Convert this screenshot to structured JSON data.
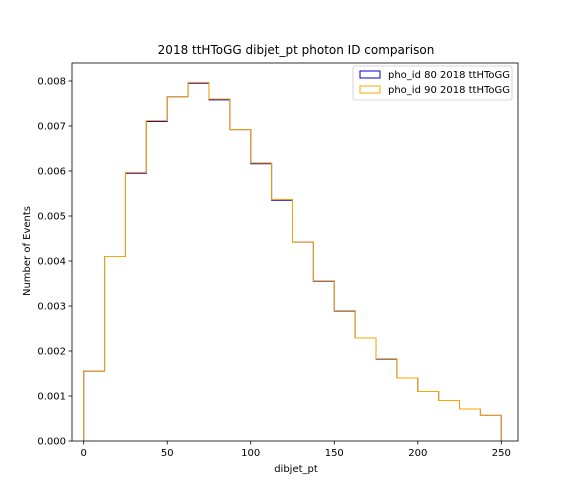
{
  "chart_data": {
    "type": "histogram-step",
    "title": "2018 ttHToGG dibjet_pt photon ID comparison",
    "xlabel": "dibjet_pt",
    "ylabel": "Number of Events",
    "xlim": [
      -7,
      260
    ],
    "ylim": [
      0,
      0.0084
    ],
    "x_ticks": [
      0,
      50,
      100,
      150,
      200,
      250
    ],
    "x_tick_labels": [
      "0",
      "50",
      "100",
      "150",
      "200",
      "250"
    ],
    "y_ticks": [
      0,
      0.001,
      0.002,
      0.003,
      0.004,
      0.005,
      0.006,
      0.007,
      0.008
    ],
    "y_tick_labels": [
      "0.000",
      "0.001",
      "0.002",
      "0.003",
      "0.004",
      "0.005",
      "0.006",
      "0.007",
      "0.008"
    ],
    "bin_edges": [
      0,
      12.5,
      25,
      37.5,
      50,
      62.5,
      75,
      87.5,
      100,
      112.5,
      125,
      137.5,
      150,
      162.5,
      175,
      187.5,
      200,
      212.5,
      225,
      237.5,
      250
    ],
    "legend_position": "upper right",
    "series": [
      {
        "name": "pho_id 80 2018 ttHToGG",
        "color": "#0000cc",
        "values": [
          0.00155,
          0.0041,
          0.00595,
          0.0071,
          0.00765,
          0.00795,
          0.00758,
          0.00692,
          0.00616,
          0.00535,
          0.00442,
          0.00355,
          0.00289,
          0.00229,
          0.00182,
          0.0014,
          0.0011,
          0.0009,
          0.00071,
          0.00057
        ]
      },
      {
        "name": "pho_id 90 2018 ttHToGG",
        "color": "#ffa500",
        "values": [
          0.00155,
          0.0041,
          0.00597,
          0.00712,
          0.00765,
          0.00797,
          0.0076,
          0.00692,
          0.00618,
          0.00537,
          0.00442,
          0.00356,
          0.0029,
          0.00229,
          0.00183,
          0.0014,
          0.0011,
          0.0009,
          0.00071,
          0.00057
        ]
      }
    ]
  }
}
